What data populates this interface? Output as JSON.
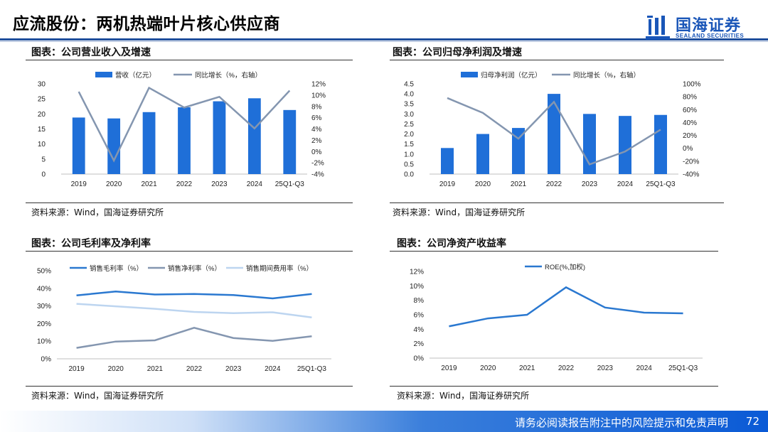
{
  "header": {
    "title": "应流股份：两机热端叶片核心供应商"
  },
  "logo": {
    "name": "国海证券",
    "sub": "SEALAND SECURITIES"
  },
  "panels": {
    "revenue": {
      "title": "图表：公司营业收入及增速",
      "source": "资料来源：Wind，国海证券研究所"
    },
    "profit": {
      "title": "图表：公司归母净利润及增速",
      "source": "资料来源：Wind，国海证券研究所"
    },
    "margin": {
      "title": "图表：公司毛利率及净利率",
      "source": "资料来源：Wind，国海证券研究所"
    },
    "roe": {
      "title": "图表：公司净资产收益率",
      "source": "资料来源：Wind，国海证券研究所"
    }
  },
  "footer": {
    "disclaimer": "请务必阅读报告附注中的风险提示和免责声明",
    "page": "72"
  },
  "colors": {
    "bar": "#1f6fd8",
    "line": "#8496b0",
    "margin_gross": "#2a78d0",
    "margin_net": "#8496b0",
    "margin_exp": "#bdd5f0",
    "roe": "#2a78d0"
  },
  "chart_data": [
    {
      "id": "revenue",
      "type": "bar+line",
      "categories": [
        "2019",
        "2020",
        "2021",
        "2022",
        "2023",
        "2024",
        "25Q1-Q3"
      ],
      "series": [
        {
          "name": "营收（亿元）",
          "axis": "left",
          "type": "bar",
          "values": [
            18.8,
            18.5,
            20.6,
            22.2,
            24.2,
            25.2,
            21.3
          ]
        },
        {
          "name": "同比增长（%，右轴）",
          "axis": "right",
          "type": "line",
          "values": [
            10.6,
            -1.6,
            11.3,
            7.8,
            9.7,
            4.1,
            10.8
          ]
        }
      ],
      "ylim_left": [
        0,
        30
      ],
      "yticks_left": [
        "0",
        "5",
        "10",
        "15",
        "20",
        "25",
        "30"
      ],
      "ylim_right": [
        -4,
        12
      ],
      "yticks_right": [
        "-4%",
        "-2%",
        "0%",
        "2%",
        "4%",
        "6%",
        "8%",
        "10%",
        "12%"
      ]
    },
    {
      "id": "profit",
      "type": "bar+line",
      "categories": [
        "2019",
        "2020",
        "2021",
        "2022",
        "2023",
        "2024",
        "25Q1-Q3"
      ],
      "series": [
        {
          "name": "归母净利润（亿元）",
          "axis": "left",
          "type": "bar",
          "values": [
            1.3,
            2.0,
            2.3,
            4.0,
            3.0,
            2.9,
            2.95
          ]
        },
        {
          "name": "同比增长（%，右轴）",
          "axis": "right",
          "type": "line",
          "values": [
            78,
            55,
            15,
            72,
            -25,
            -5,
            29
          ]
        }
      ],
      "ylim_left": [
        0,
        4.5
      ],
      "yticks_left": [
        "0.0",
        "0.5",
        "1.0",
        "1.5",
        "2.0",
        "2.5",
        "3.0",
        "3.5",
        "4.0",
        "4.5"
      ],
      "ylim_right": [
        -40,
        100
      ],
      "yticks_right": [
        "-40%",
        "-20%",
        "0%",
        "20%",
        "40%",
        "60%",
        "80%",
        "100%"
      ]
    },
    {
      "id": "margin",
      "type": "line",
      "categories": [
        "2019",
        "2020",
        "2021",
        "2022",
        "2023",
        "2024",
        "25Q1-Q3"
      ],
      "series": [
        {
          "name": "销售毛利率（%）",
          "values": [
            36,
            38.2,
            36.5,
            36.8,
            36.2,
            34.3,
            36.8
          ]
        },
        {
          "name": "销售净利率（%）",
          "values": [
            6.2,
            9.8,
            10.5,
            17.6,
            11.8,
            10.2,
            12.8
          ]
        },
        {
          "name": "销售期间费用率（%）",
          "values": [
            31.2,
            29.8,
            28.4,
            26.6,
            25.9,
            26.4,
            23.5
          ]
        }
      ],
      "ylim": [
        0,
        50
      ],
      "yticks": [
        "0%",
        "10%",
        "20%",
        "30%",
        "40%",
        "50%"
      ]
    },
    {
      "id": "roe",
      "type": "line",
      "categories": [
        "2019",
        "2020",
        "2021",
        "2022",
        "2023",
        "2024",
        "25Q1-Q3"
      ],
      "series": [
        {
          "name": "ROE(%,加权)",
          "values": [
            4.4,
            5.5,
            6.0,
            9.8,
            7.0,
            6.3,
            6.2
          ]
        }
      ],
      "ylim": [
        0,
        12
      ],
      "yticks": [
        "0%",
        "2%",
        "4%",
        "6%",
        "8%",
        "10%",
        "12%"
      ]
    }
  ]
}
